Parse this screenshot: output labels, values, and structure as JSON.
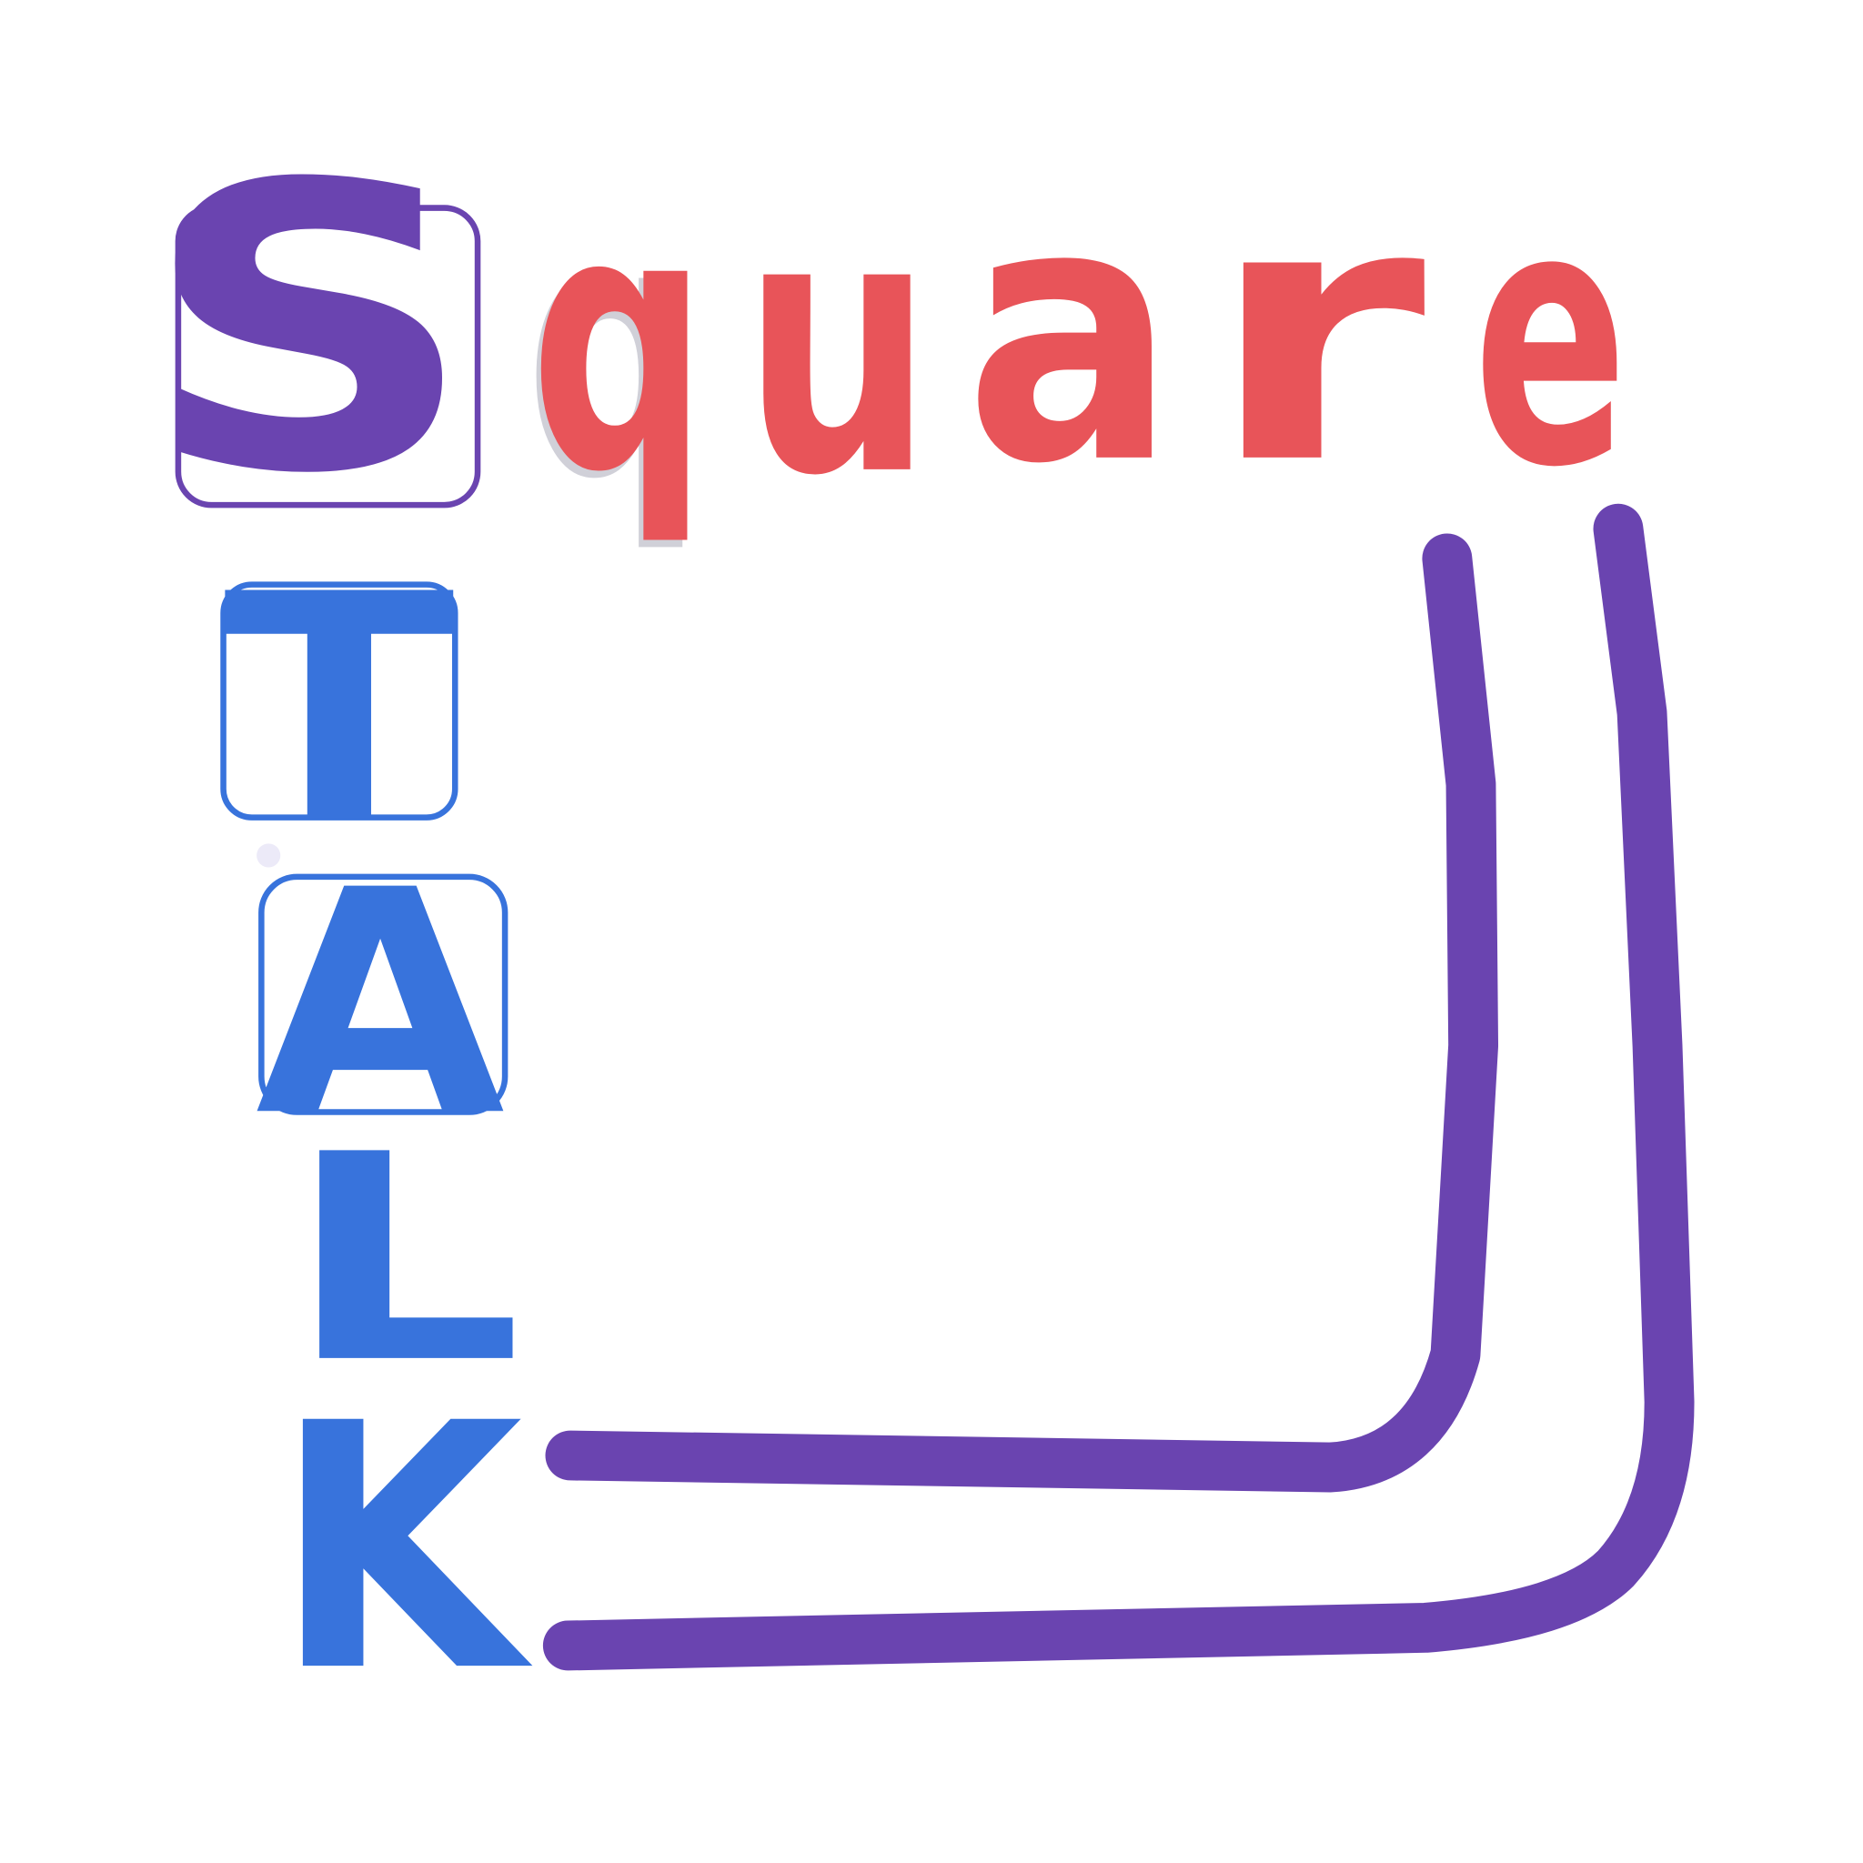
{
  "logo": {
    "first_word": {
      "letters": [
        "S",
        "q",
        "u",
        "a",
        "r",
        "e"
      ]
    },
    "second_word": {
      "letters": [
        "T",
        "A",
        "L",
        "K"
      ]
    }
  }
}
